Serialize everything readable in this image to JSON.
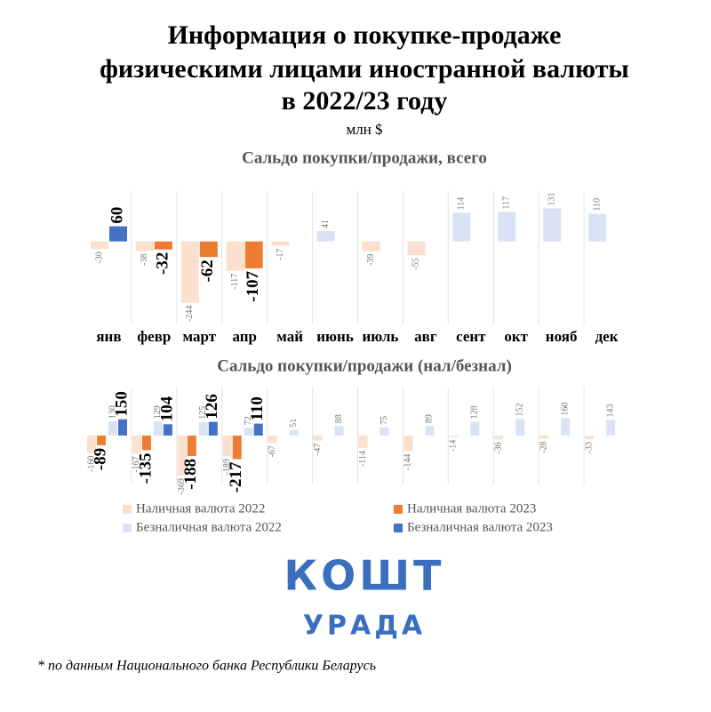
{
  "header": {
    "title": [
      "Информация о покупке-продаже",
      "физическими лицами иностранной валюты",
      "в 2022/23 году"
    ],
    "unit": "млн $"
  },
  "chart_data": [
    {
      "type": "bar",
      "title": "Сальдо покупки/продажи, всего",
      "categories": [
        "янв",
        "февр",
        "март",
        "апр",
        "май",
        "июнь",
        "июль",
        "авг",
        "сент",
        "окт",
        "нояб",
        "дек"
      ],
      "series": [
        {
          "color": "#dae3f3",
          "negative_color": "#fbe0d0",
          "values": [
            -30,
            -38,
            -244,
            -117,
            -17,
            41,
            -39,
            -55,
            114,
            117,
            131,
            110
          ]
        },
        {
          "color": "#4472c4",
          "negative_color": "#ed7d31",
          "values": [
            60,
            -32,
            -62,
            -107,
            null,
            null,
            null,
            null,
            null,
            null,
            null,
            null
          ]
        }
      ],
      "ylim": [
        -330,
        200
      ]
    },
    {
      "type": "bar",
      "title": "Сальдо покупки/продажи (нал/безнал)",
      "series": [
        {
          "name": "Наличная валюта 2022",
          "color": "#fbe0d0",
          "values": [
            -160,
            -167,
            -369,
            -189,
            -67,
            -47,
            -114,
            -144,
            -14,
            -36,
            -28,
            -33
          ]
        },
        {
          "name": "Наличная валюта 2023",
          "color": "#ed7d31",
          "values": [
            -89,
            -135,
            -188,
            -217,
            null,
            null,
            null,
            null,
            null,
            null,
            null,
            null
          ]
        },
        {
          "name": "Безналичная валюта 2022",
          "color": "#dae3f3",
          "values": [
            130,
            129,
            125,
            72,
            51,
            88,
            75,
            89,
            128,
            152,
            160,
            143
          ]
        },
        {
          "name": "Безналичная валюта 2023",
          "color": "#4472c4",
          "values": [
            150,
            104,
            126,
            110,
            null,
            null,
            null,
            null,
            null,
            null,
            null,
            null
          ]
        }
      ],
      "ylim": [
        -450,
        450
      ]
    }
  ],
  "logo": {
    "line1": "КОШТ",
    "line2": "УРАДА"
  },
  "footnote": "* по данным Национального банка Республики Беларусь"
}
